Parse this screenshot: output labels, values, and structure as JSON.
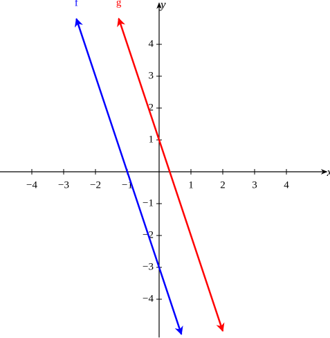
{
  "chart_data": {
    "type": "line",
    "x_label": "x",
    "y_label": "y",
    "series": [
      {
        "name": "f",
        "color": "#0000ff",
        "x": [
          -2.6,
          0.7
        ],
        "values": [
          4.8,
          -5.1
        ]
      },
      {
        "name": "g",
        "color": "#ff0000",
        "x": [
          -1.27,
          2
        ],
        "values": [
          4.81,
          -5
        ]
      }
    ],
    "xlim": [
      -5,
      5.1
    ],
    "ylim": [
      -5.2,
      5.3
    ],
    "xticks": [
      {
        "value": -4,
        "label": "−4"
      },
      {
        "value": -3,
        "label": "−3"
      },
      {
        "value": -2,
        "label": "−2"
      },
      {
        "value": -1,
        "label": "−1"
      },
      1,
      2,
      3,
      4
    ],
    "yticks": [
      {
        "value": -4,
        "label": "−4"
      },
      {
        "value": -3,
        "label": "−3"
      },
      {
        "value": -2,
        "label": "−2"
      },
      {
        "value": -1,
        "label": "−1"
      },
      1,
      2,
      3,
      4
    ],
    "grid": false
  }
}
